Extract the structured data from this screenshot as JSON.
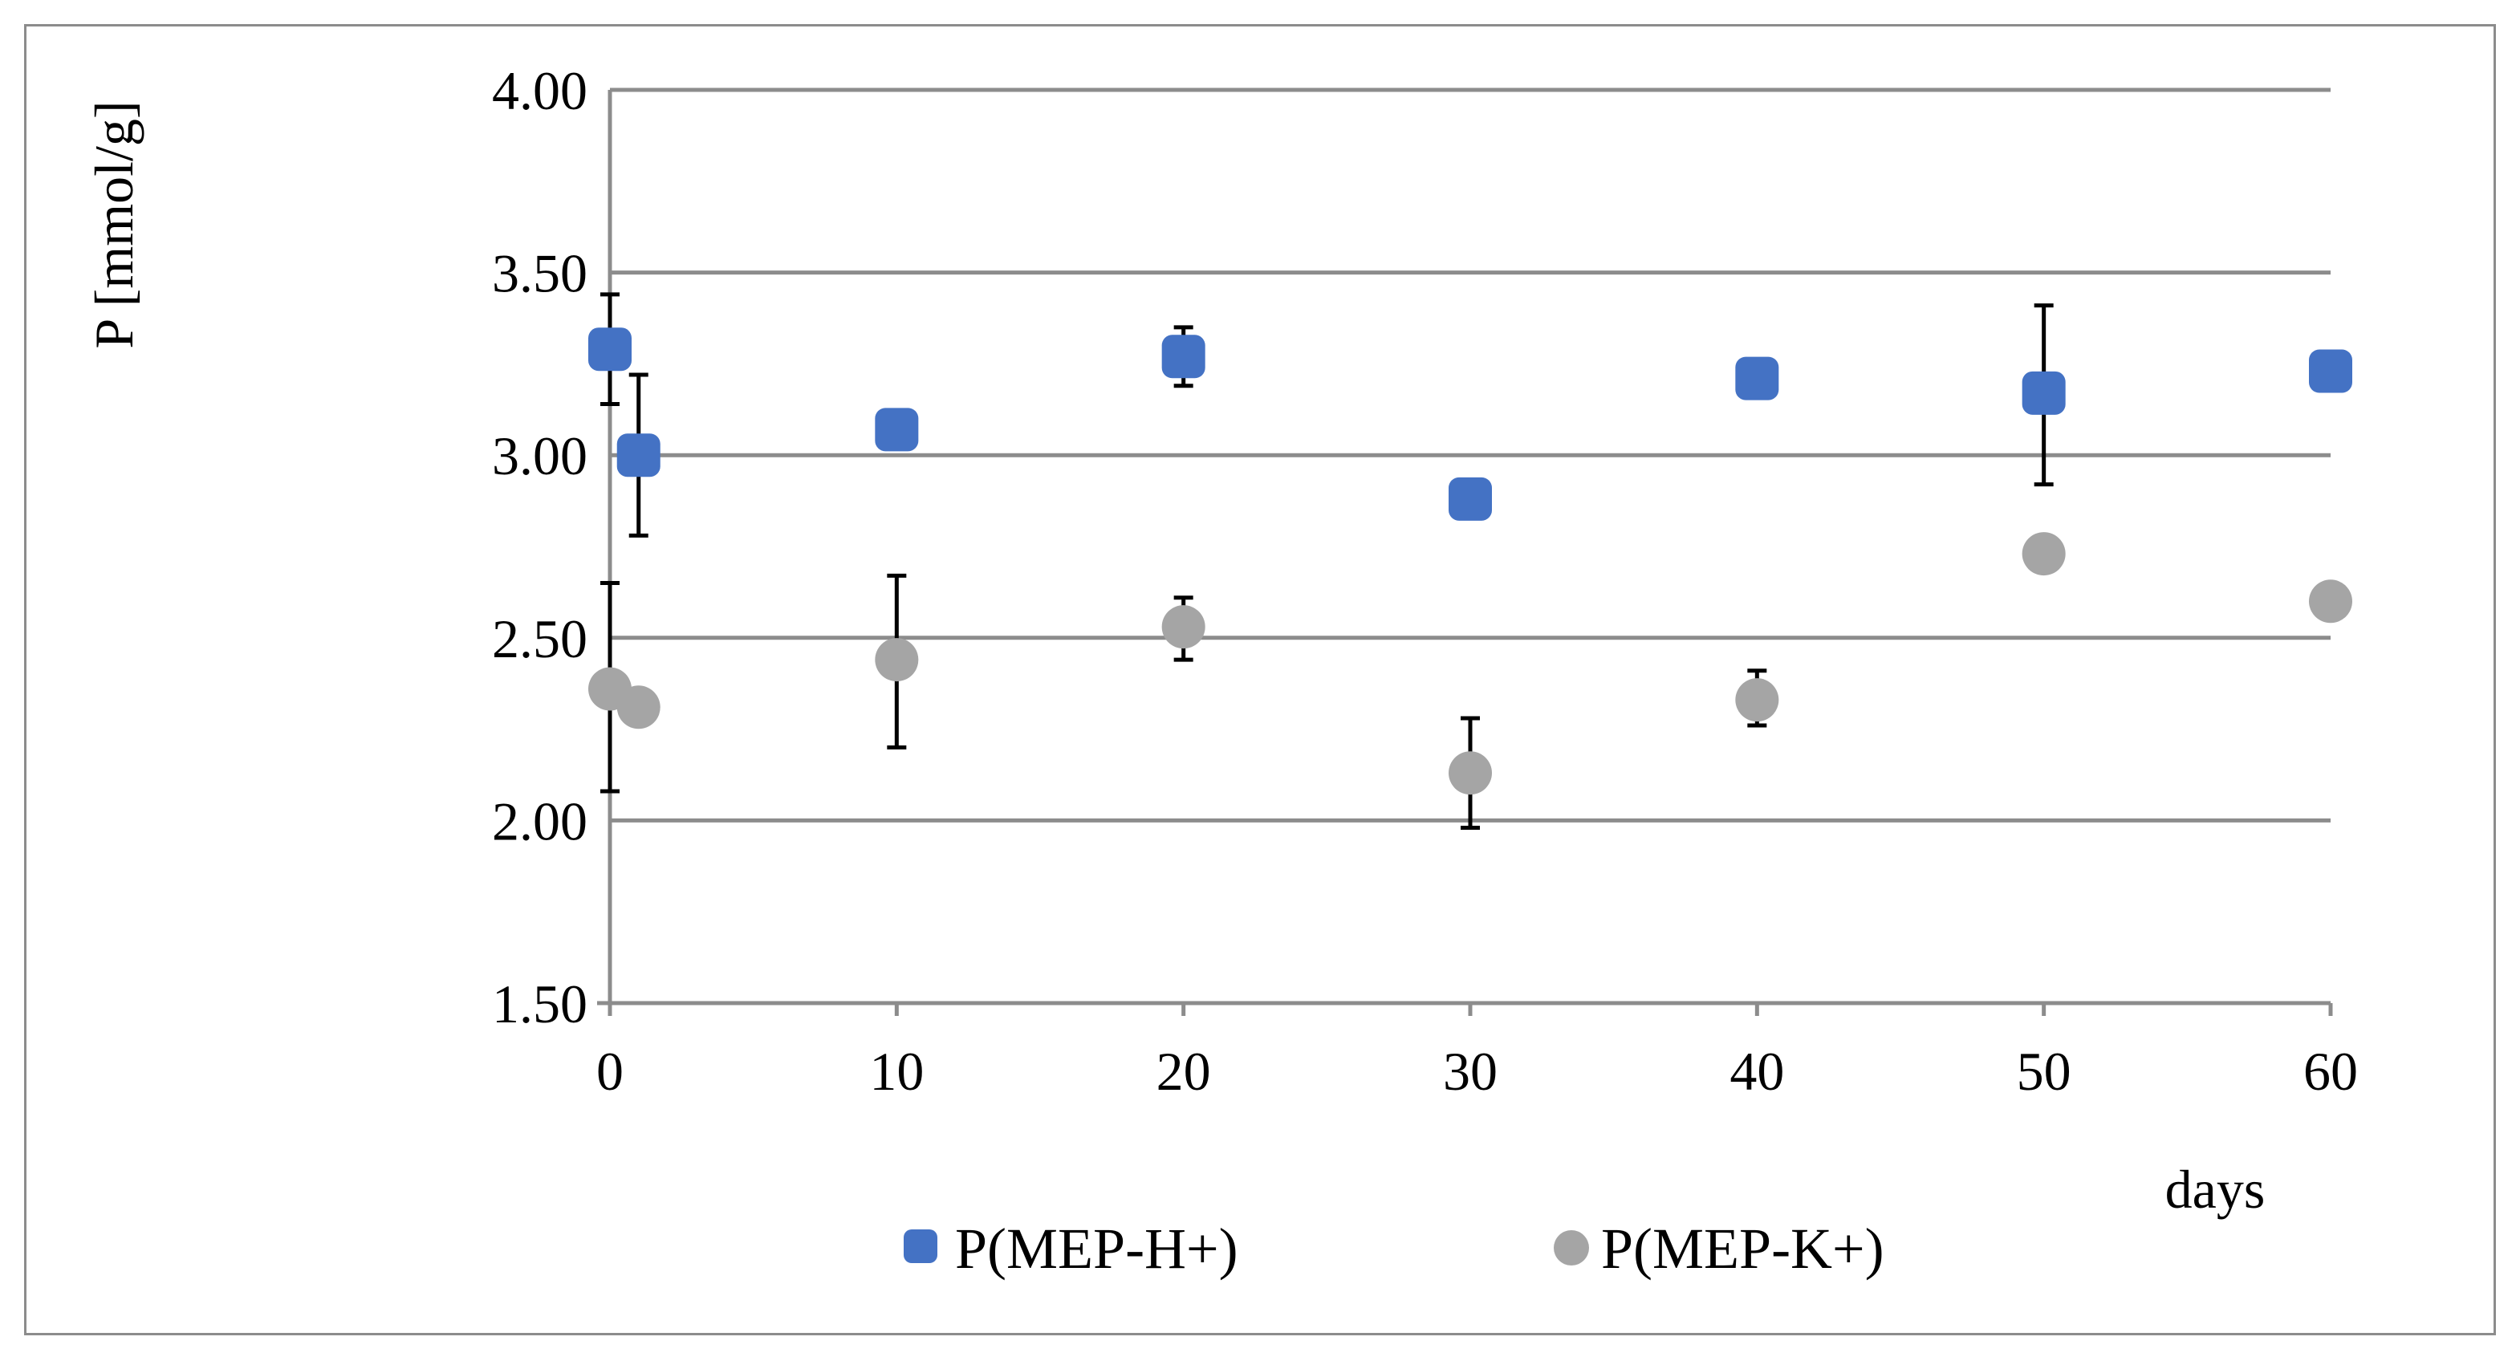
{
  "chart_data": {
    "type": "scatter",
    "title": "",
    "xlabel": "days",
    "ylabel": "P [mmol/g]",
    "xlim": [
      0,
      60
    ],
    "ylim": [
      1.5,
      4.0
    ],
    "x_ticks": [
      "0",
      "10",
      "20",
      "30",
      "40",
      "50",
      "60"
    ],
    "y_ticks": [
      "1.50",
      "2.00",
      "2.50",
      "3.00",
      "3.50",
      "4.00"
    ],
    "grid": "horizontal",
    "legend_position": "bottom",
    "series": [
      {
        "name": "P(MEP-H+)",
        "marker": "rounded-square",
        "color": "#4472c4",
        "points": [
          {
            "x": 0,
            "y": 3.29,
            "err_low": 3.14,
            "err_high": 3.44
          },
          {
            "x": 1,
            "y": 3.0,
            "err_low": 2.78,
            "err_high": 3.22
          },
          {
            "x": 10,
            "y": 3.07,
            "err_low": 3.05,
            "err_high": 3.09
          },
          {
            "x": 20,
            "y": 3.27,
            "err_low": 3.19,
            "err_high": 3.35
          },
          {
            "x": 30,
            "y": 2.88,
            "err_low": 2.86,
            "err_high": 2.9
          },
          {
            "x": 40,
            "y": 3.21,
            "err_low": 3.19,
            "err_high": 3.23
          },
          {
            "x": 50,
            "y": 3.17,
            "err_low": 2.92,
            "err_high": 3.41
          },
          {
            "x": 60,
            "y": 3.23,
            "err_low": 3.18,
            "err_high": 3.28
          }
        ]
      },
      {
        "name": "P(MEP-K+)",
        "marker": "circle",
        "color": "#a5a5a5",
        "points": [
          {
            "x": 0,
            "y": 2.36,
            "err_low": 2.08,
            "err_high": 2.65
          },
          {
            "x": 1,
            "y": 2.31,
            "err_low": 2.29,
            "err_high": 2.33
          },
          {
            "x": 10,
            "y": 2.44,
            "err_low": 2.2,
            "err_high": 2.67
          },
          {
            "x": 20,
            "y": 2.53,
            "err_low": 2.44,
            "err_high": 2.61
          },
          {
            "x": 30,
            "y": 2.13,
            "err_low": 1.98,
            "err_high": 2.28
          },
          {
            "x": 40,
            "y": 2.33,
            "err_low": 2.26,
            "err_high": 2.41
          },
          {
            "x": 50,
            "y": 2.73,
            "err_low": 2.71,
            "err_high": 2.75
          },
          {
            "x": 60,
            "y": 2.6,
            "err_low": 2.58,
            "err_high": 2.62
          }
        ]
      }
    ]
  }
}
